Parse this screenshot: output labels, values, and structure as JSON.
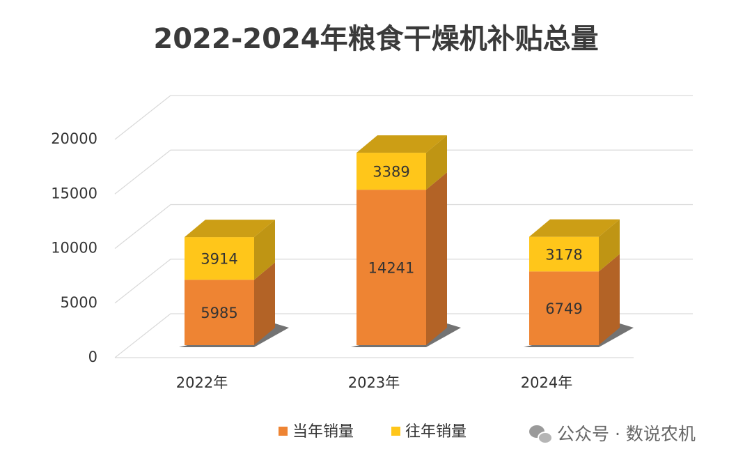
{
  "chart_data": {
    "type": "bar3d_stacked",
    "title": "2022-2024年粮食干燥机补贴总量",
    "categories": [
      "2022年",
      "2023年",
      "2024年"
    ],
    "series": [
      {
        "name": "当年销量",
        "color": "#ee8433",
        "values": [
          5985,
          14241,
          6749
        ]
      },
      {
        "name": "往年销量",
        "color": "#ffc61a",
        "values": [
          3914,
          3389,
          3178
        ]
      }
    ],
    "ylim": [
      0,
      20000
    ],
    "yticks": [
      0,
      5000,
      10000,
      15000,
      20000
    ],
    "grid": true,
    "legend": "bottom",
    "watermark": "公众号 · 数说农机"
  }
}
